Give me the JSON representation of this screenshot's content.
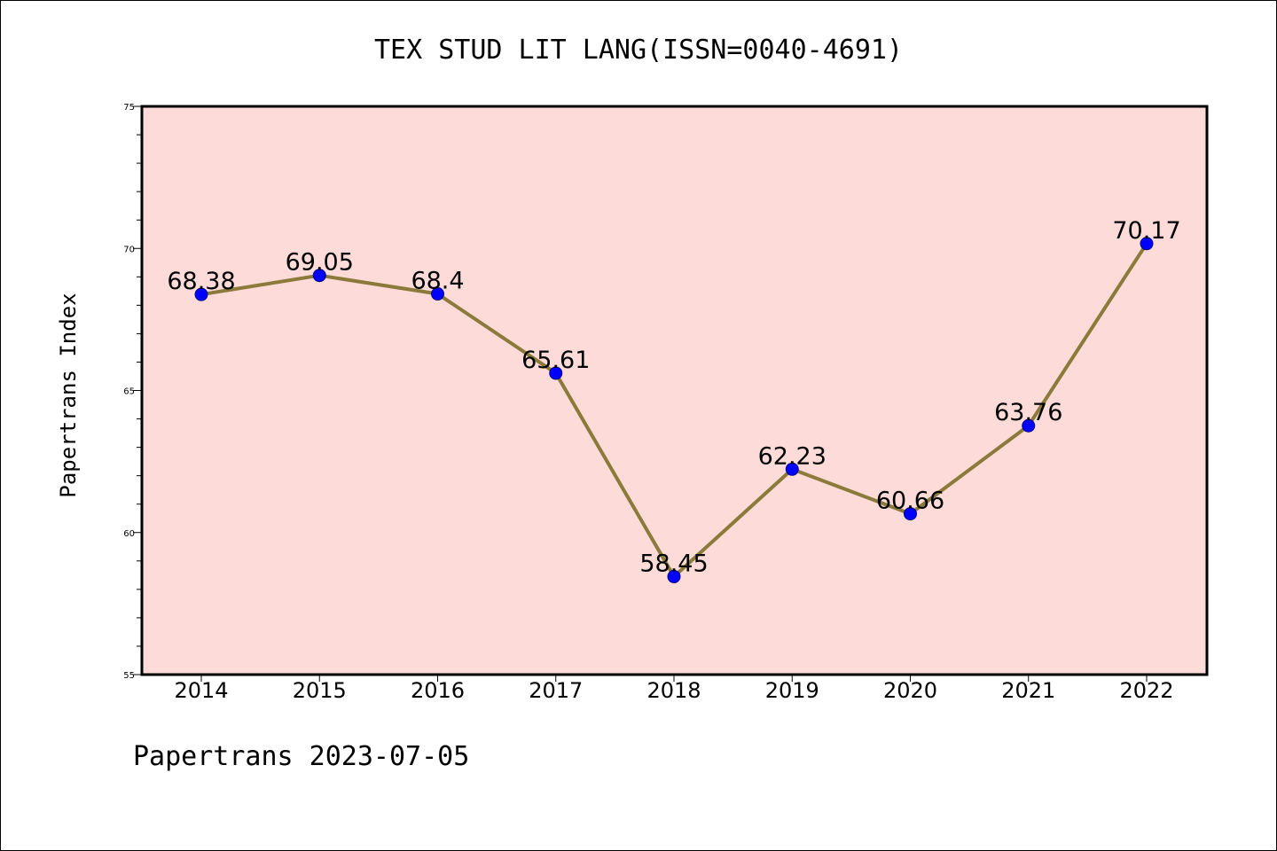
{
  "chart_data": {
    "type": "line",
    "title": "TEX STUD LIT LANG(ISSN=0040-4691)",
    "xlabel": "",
    "ylabel": "Papertrans Index",
    "categories": [
      "2014",
      "2015",
      "2016",
      "2017",
      "2018",
      "2019",
      "2020",
      "2021",
      "2022"
    ],
    "series": [
      {
        "values": [
          68.38,
          69.05,
          68.4,
          65.61,
          58.45,
          62.23,
          60.66,
          63.76,
          70.17
        ]
      }
    ],
    "data_labels": [
      "68.38",
      "69.05",
      "68.4",
      "65.61",
      "58.45",
      "62.23",
      "60.66",
      "63.76",
      "70.17"
    ],
    "ylim": [
      55,
      75
    ],
    "y_ticks": [
      55,
      60,
      65,
      70,
      75
    ],
    "y_minor_step": 1,
    "grid": false,
    "legend": "none",
    "footer": "Papertrans 2023-07-05",
    "colors": {
      "plot_background": "#fddbd8",
      "line": "#8b7a3a",
      "marker_fill": "#0000ff",
      "marker_edge": "#00008b",
      "axis": "#000000"
    }
  }
}
